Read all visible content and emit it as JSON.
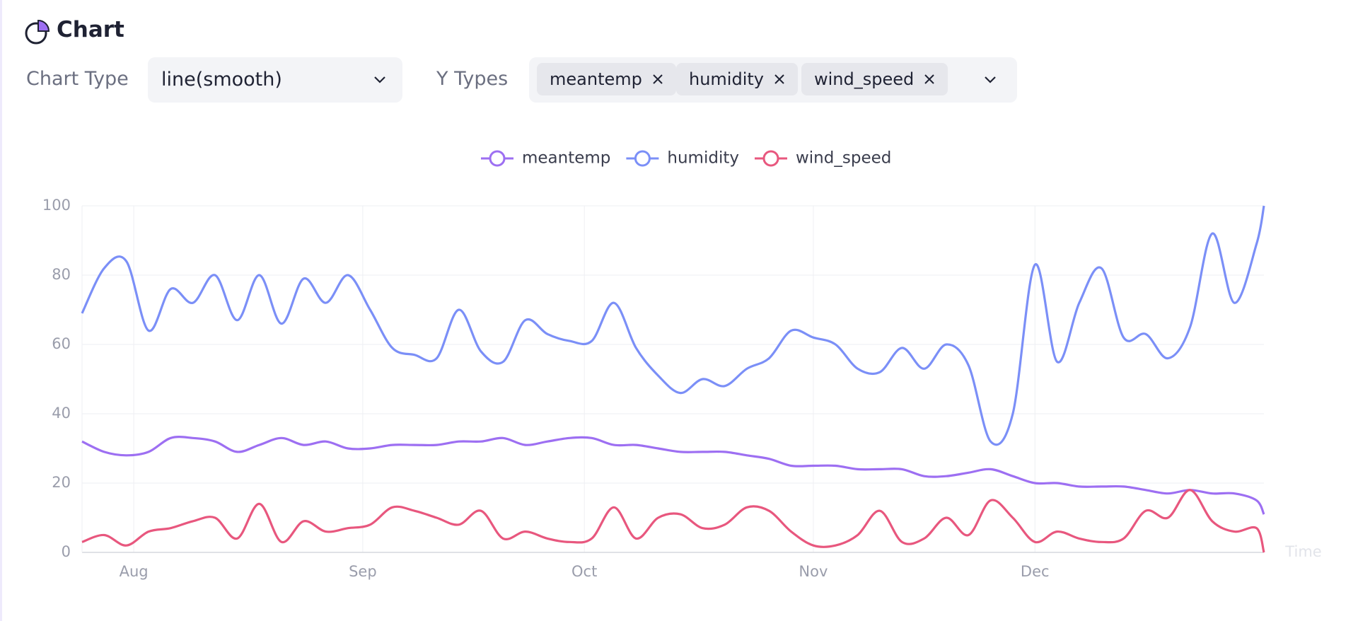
{
  "header": {
    "title": "Chart"
  },
  "controls": {
    "chart_type": {
      "label": "Chart Type",
      "value": "line(smooth)"
    },
    "y_types": {
      "label": "Y Types",
      "selected": [
        "meantemp",
        "humidity",
        "wind_speed"
      ]
    }
  },
  "chart_data": {
    "type": "line",
    "smooth": true,
    "x_label": "Time",
    "x": [
      0,
      3,
      6,
      9,
      12,
      15,
      18,
      21,
      24,
      27,
      30,
      33,
      36,
      39,
      42,
      45,
      48,
      51,
      54,
      57,
      60,
      63,
      66,
      69,
      72,
      75,
      78,
      81,
      84,
      87,
      90,
      93,
      96,
      99,
      102,
      105,
      108,
      111,
      114,
      117,
      120,
      123,
      126,
      129,
      132,
      135,
      138,
      141,
      144,
      147,
      150,
      153,
      156,
      159,
      160
    ],
    "xlim": [
      0,
      160
    ],
    "xticks": [
      {
        "value": 7,
        "label": "Aug"
      },
      {
        "value": 38,
        "label": "Sep"
      },
      {
        "value": 68,
        "label": "Oct"
      },
      {
        "value": 99,
        "label": "Nov"
      },
      {
        "value": 129,
        "label": "Dec"
      }
    ],
    "ylim": [
      0,
      100
    ],
    "yticks": [
      0,
      20,
      40,
      60,
      80,
      100
    ],
    "grid": true,
    "legend": "top",
    "series": [
      {
        "name": "meantemp",
        "color": "#9d6ff2",
        "values": [
          32,
          29,
          28,
          29,
          33,
          33,
          32,
          29,
          31,
          33,
          31,
          32,
          30,
          30,
          31,
          31,
          31,
          32,
          32,
          33,
          31,
          32,
          33,
          33,
          31,
          31,
          30,
          29,
          29,
          29,
          28,
          27,
          25,
          25,
          25,
          24,
          24,
          24,
          22,
          22,
          23,
          24,
          22,
          20,
          20,
          19,
          19,
          19,
          18,
          17,
          18,
          17,
          17,
          15,
          11
        ]
      },
      {
        "name": "humidity",
        "color": "#7b8ff7",
        "values": [
          69,
          82,
          84,
          64,
          76,
          72,
          80,
          67,
          80,
          66,
          79,
          72,
          80,
          70,
          59,
          57,
          56,
          70,
          58,
          55,
          67,
          63,
          61,
          61,
          72,
          59,
          51,
          46,
          50,
          48,
          53,
          56,
          64,
          62,
          60,
          53,
          52,
          59,
          53,
          60,
          54,
          32,
          40,
          83,
          55,
          72,
          82,
          62,
          63,
          56,
          65,
          92,
          72,
          89,
          100
        ]
      },
      {
        "name": "wind_speed",
        "color": "#e8577e",
        "values": [
          3,
          5,
          2,
          6,
          7,
          9,
          10,
          4,
          14,
          3,
          9,
          6,
          7,
          8,
          13,
          12,
          10,
          8,
          12,
          4,
          6,
          4,
          3,
          4,
          13,
          4,
          10,
          11,
          7,
          8,
          13,
          12,
          6,
          2,
          2,
          5,
          12,
          3,
          4,
          10,
          5,
          15,
          10,
          3,
          6,
          4,
          3,
          4,
          12,
          10,
          18,
          9,
          6,
          7,
          0
        ]
      }
    ]
  }
}
